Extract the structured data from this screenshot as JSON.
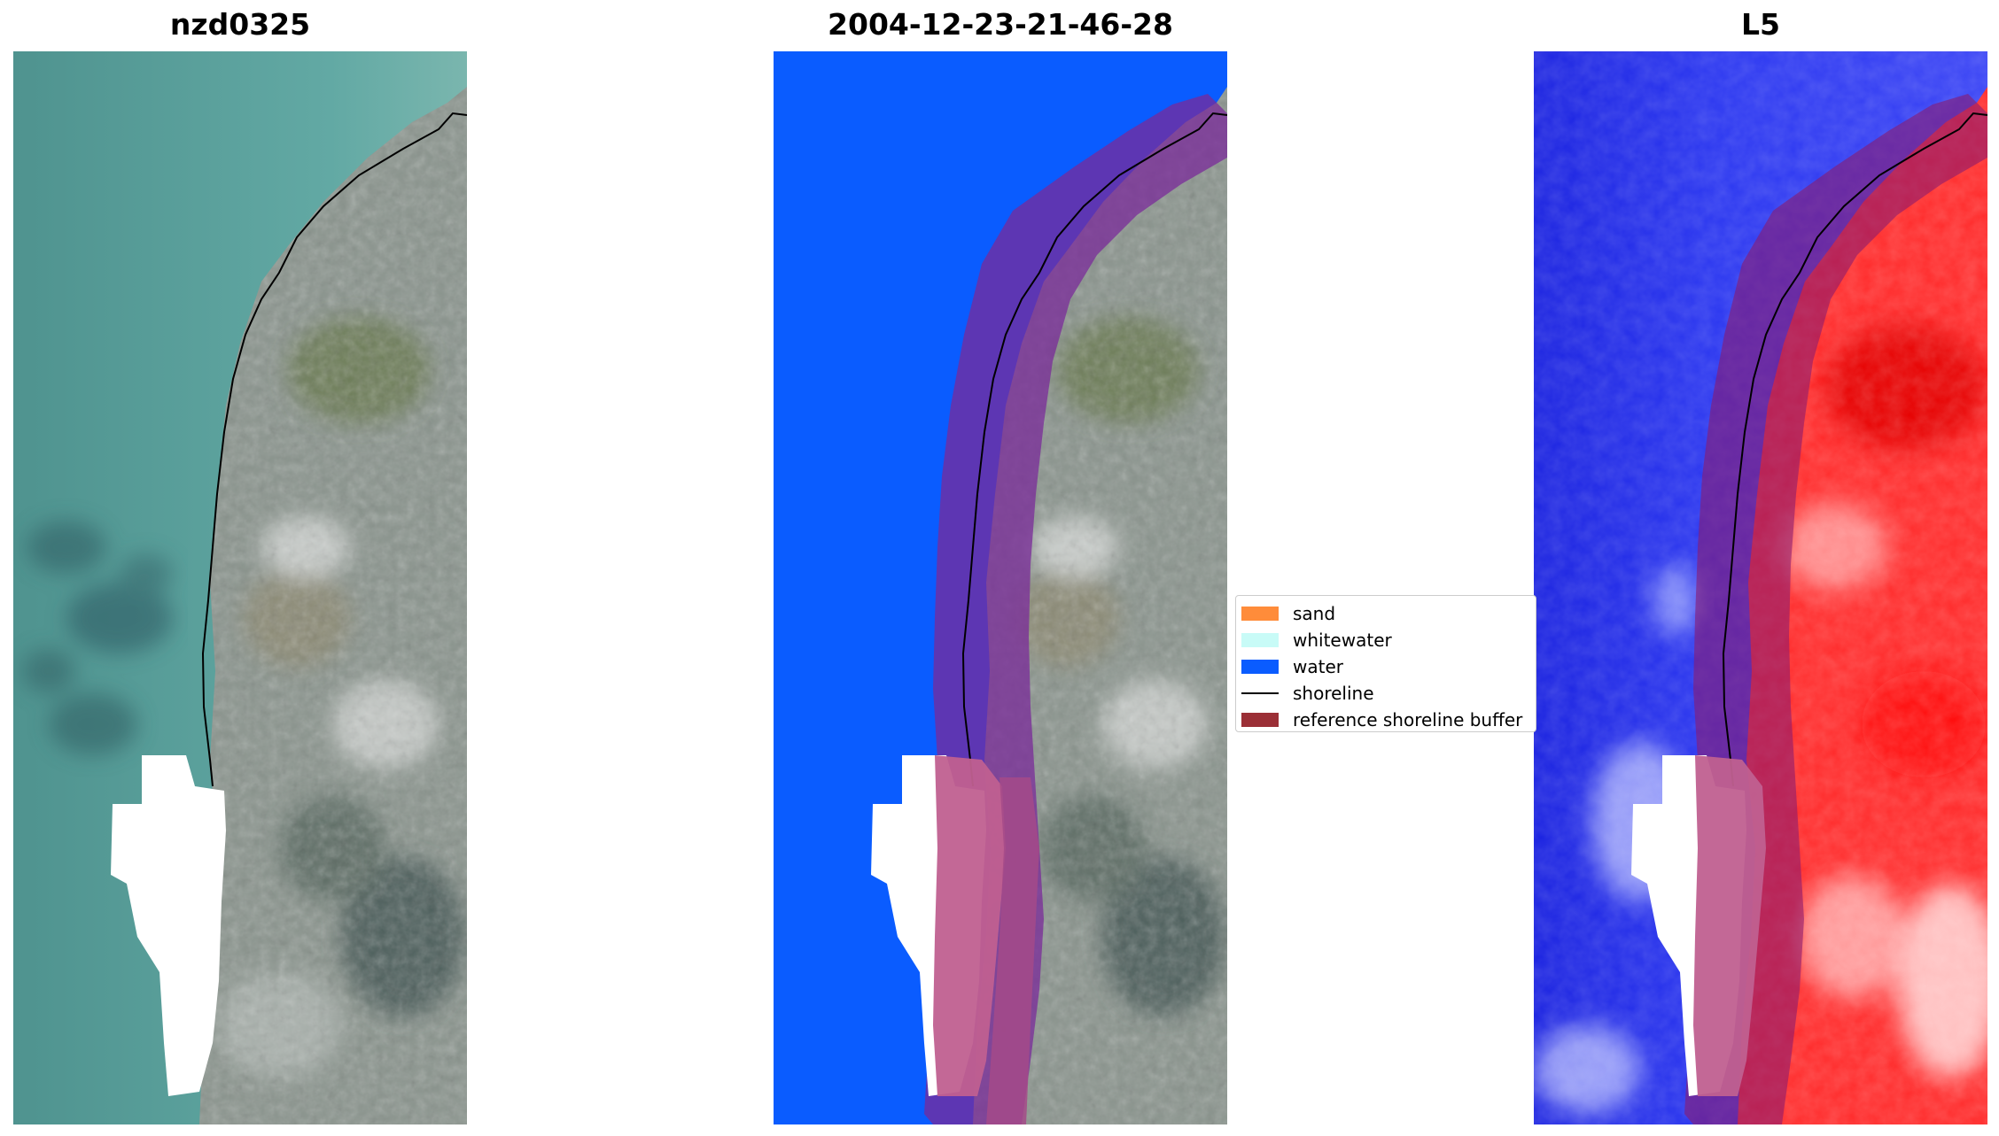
{
  "panels": [
    {
      "title": "nzd0325"
    },
    {
      "title": "2004-12-23-21-46-28"
    },
    {
      "title": "L5"
    }
  ],
  "legend": {
    "items": [
      {
        "label": "sand",
        "color": "#ff8c3a",
        "kind": "patch"
      },
      {
        "label": "whitewater",
        "color": "#c8fbf7",
        "kind": "patch"
      },
      {
        "label": "water",
        "color": "#0a5cff",
        "kind": "patch"
      },
      {
        "label": "shoreline",
        "color": "#000000",
        "kind": "line"
      },
      {
        "label": "reference shoreline buffer",
        "color": "#9b2f36",
        "kind": "patch"
      }
    ]
  },
  "colors": {
    "sea": "#5a9f9a",
    "land": "#8e9890",
    "water_class": "#0a5cff",
    "buffer": "#9b2f36",
    "index_water": "#1f2fe8",
    "index_land": "#ff2a2a",
    "cloud_mask": "#ffffff"
  }
}
